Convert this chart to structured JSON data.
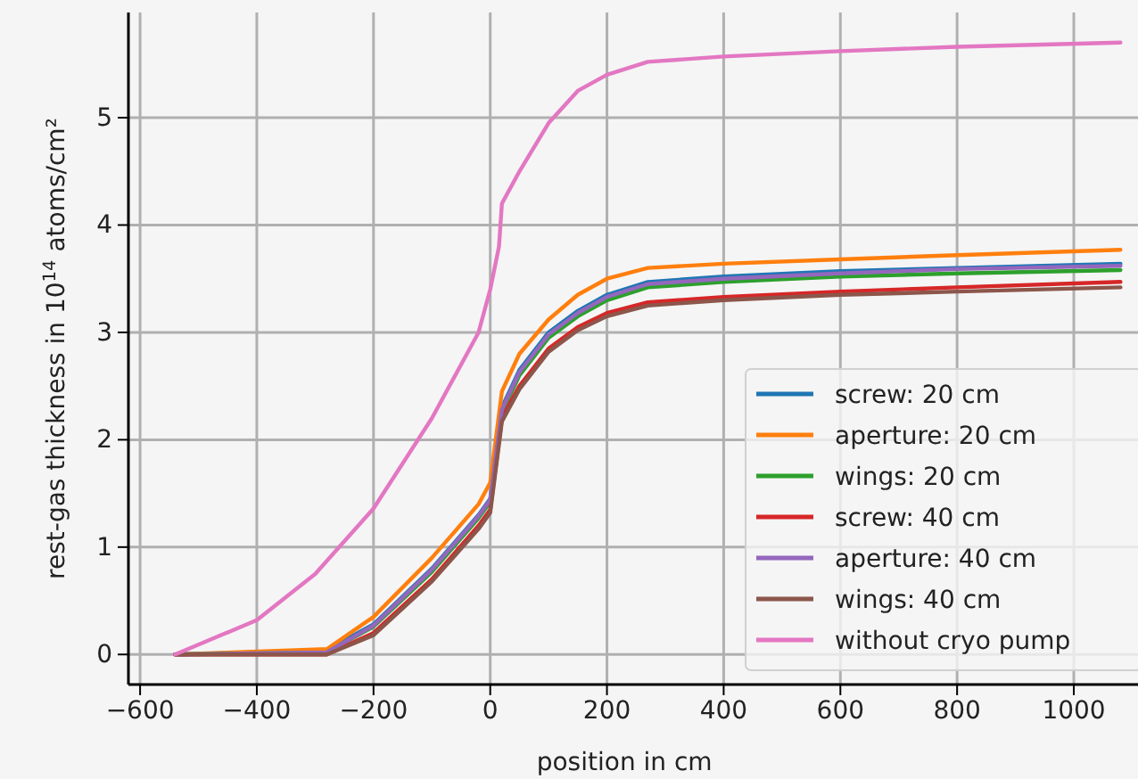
{
  "chart_data": {
    "type": "line",
    "xlabel": "position in cm",
    "ylabel": "rest-gas thickness in 10$^{14}$ atoms/cm²",
    "xlim": [
      -620,
      1110
    ],
    "ylim": [
      -0.28,
      5.98
    ],
    "xticks": [
      -600,
      -400,
      -200,
      0,
      200,
      400,
      600,
      800,
      1000
    ],
    "yticks": [
      0,
      1,
      2,
      3,
      4,
      5
    ],
    "grid": true,
    "legend": "bottom right",
    "x": [
      -540,
      -280,
      -200,
      -100,
      -20,
      0,
      20,
      50,
      100,
      150,
      200,
      270,
      400,
      600,
      800,
      1080
    ],
    "series": [
      {
        "name": "screw: 20 cm",
        "color": "#1f77b4",
        "values": [
          0,
          0.04,
          0.28,
          0.8,
          1.3,
          1.45,
          2.3,
          2.65,
          3.0,
          3.2,
          3.35,
          3.47,
          3.52,
          3.57,
          3.6,
          3.64
        ]
      },
      {
        "name": "aperture: 20 cm",
        "color": "#ff7f0e",
        "values": [
          0,
          0.05,
          0.35,
          0.9,
          1.4,
          1.6,
          2.45,
          2.8,
          3.12,
          3.35,
          3.5,
          3.6,
          3.64,
          3.68,
          3.72,
          3.77
        ]
      },
      {
        "name": "wings: 20 cm",
        "color": "#2ca02c",
        "values": [
          0,
          0.02,
          0.26,
          0.77,
          1.27,
          1.42,
          2.25,
          2.6,
          2.95,
          3.15,
          3.3,
          3.42,
          3.47,
          3.52,
          3.55,
          3.58
        ]
      },
      {
        "name": "screw: 40 cm",
        "color": "#d62728",
        "values": [
          0,
          0,
          0.2,
          0.7,
          1.2,
          1.35,
          2.2,
          2.5,
          2.85,
          3.05,
          3.18,
          3.28,
          3.33,
          3.38,
          3.42,
          3.47
        ]
      },
      {
        "name": "aperture: 40 cm",
        "color": "#9467bd",
        "values": [
          0,
          0.02,
          0.27,
          0.79,
          1.29,
          1.44,
          2.28,
          2.63,
          2.98,
          3.18,
          3.33,
          3.45,
          3.5,
          3.55,
          3.59,
          3.62
        ]
      },
      {
        "name": "wings: 40 cm",
        "color": "#8c564b",
        "values": [
          0,
          0,
          0.18,
          0.68,
          1.17,
          1.32,
          2.17,
          2.47,
          2.82,
          3.02,
          3.15,
          3.25,
          3.3,
          3.35,
          3.38,
          3.42
        ]
      },
      {
        "name": "without cryo pump",
        "color": "#e377c2",
        "x": [
          -540,
          -400,
          -300,
          -200,
          -100,
          -20,
          0,
          15,
          20,
          50,
          100,
          150,
          200,
          270,
          400,
          600,
          800,
          1080
        ],
        "values": [
          0,
          0.32,
          0.75,
          1.36,
          2.2,
          3.0,
          3.4,
          3.8,
          4.2,
          4.5,
          4.95,
          5.25,
          5.4,
          5.52,
          5.57,
          5.62,
          5.66,
          5.7
        ]
      }
    ]
  }
}
